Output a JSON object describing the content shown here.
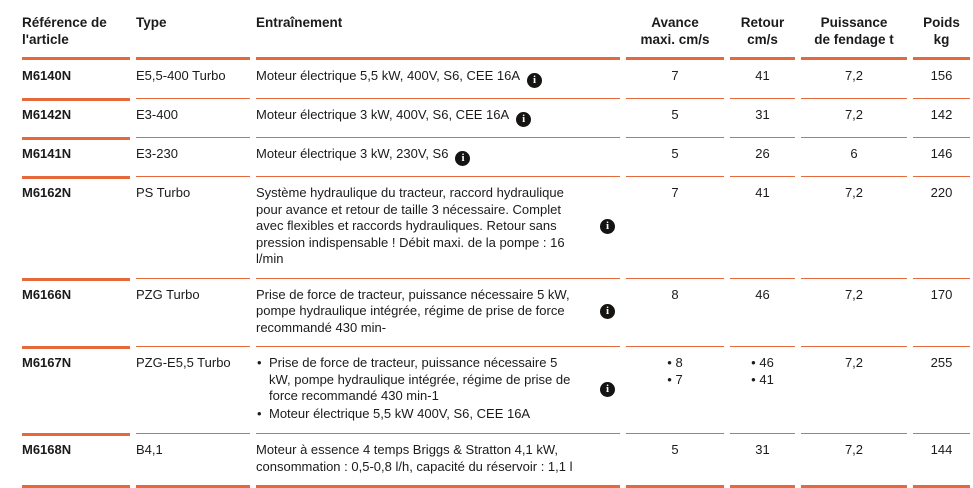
{
  "colors": {
    "accent": "#E5693B",
    "text": "#1C1B1A",
    "info_icon_bg": "#161412"
  },
  "icons": {
    "info_label": "i"
  },
  "header": {
    "ref": [
      "Référence de",
      "l'article"
    ],
    "type": "Type",
    "drive": "Entraînement",
    "advance": [
      "Avance",
      "maxi. cm/s"
    ],
    "retour": [
      "Retour",
      "cm/s"
    ],
    "power": [
      "Puissance",
      "de fendage t"
    ],
    "weight": [
      "Poids",
      "kg"
    ]
  },
  "rows": [
    {
      "ref": "M6140N",
      "type": "E5,5-400 Turbo",
      "drive": [
        "Moteur électrique 5,5 kW, 400V, S6, CEE 16A"
      ],
      "advance": [
        "7"
      ],
      "retour": [
        "41"
      ],
      "power": "7,2",
      "weight": "156"
    },
    {
      "ref": "M6142N",
      "type": "E3-400",
      "drive": [
        "Moteur électrique 3 kW, 400V, S6, CEE 16A"
      ],
      "advance": [
        "5"
      ],
      "retour": [
        "31"
      ],
      "power": "7,2",
      "weight": "142"
    },
    {
      "ref": "M6141N",
      "type": "E3-230",
      "drive": [
        "Moteur électrique 3 kW, 230V, S6"
      ],
      "advance": [
        "5"
      ],
      "retour": [
        "26"
      ],
      "power": "6",
      "weight": "146"
    },
    {
      "ref": "M6162N",
      "type": "PS Turbo",
      "drive": [
        "Système hydraulique du tracteur, raccord hydraulique pour avance et retour de taille 3 nécessaire. Complet avec flexibles et raccords hydrauliques. Retour sans pression indispensable ! Débit maxi. de la pompe : 16 l/min"
      ],
      "advance": [
        "7"
      ],
      "retour": [
        "41"
      ],
      "power": "7,2",
      "weight": "220"
    },
    {
      "ref": "M6166N",
      "type": "PZG Turbo",
      "drive": [
        "Prise de force de tracteur, puissance nécessaire 5 kW, pompe hydraulique intégrée, régime de prise de force recommandé 430 min-"
      ],
      "advance": [
        "8"
      ],
      "retour": [
        "46"
      ],
      "power": "7,2",
      "weight": "170"
    },
    {
      "ref": "M6167N",
      "type": "PZG-E5,5 Turbo",
      "drive": [
        "Prise de force de tracteur, puissance nécessaire 5 kW, pompe hydraulique intégrée, régime de prise de force recommandé 430 min-1",
        "Moteur électrique 5,5 kW 400V, S6, CEE 16A"
      ],
      "advance": [
        "8",
        "7"
      ],
      "retour": [
        "46",
        "41"
      ],
      "power": "7,2",
      "weight": "255"
    },
    {
      "ref": "M6168N",
      "type": "B4,1",
      "drive": [
        "Moteur à essence 4 temps Briggs & Stratton 4,1 kW, consommation : 0,5-0,8 l/h, capacité du réservoir : 1,1 l"
      ],
      "advance": [
        "5"
      ],
      "retour": [
        "31"
      ],
      "power": "7,2",
      "weight": "144"
    }
  ]
}
